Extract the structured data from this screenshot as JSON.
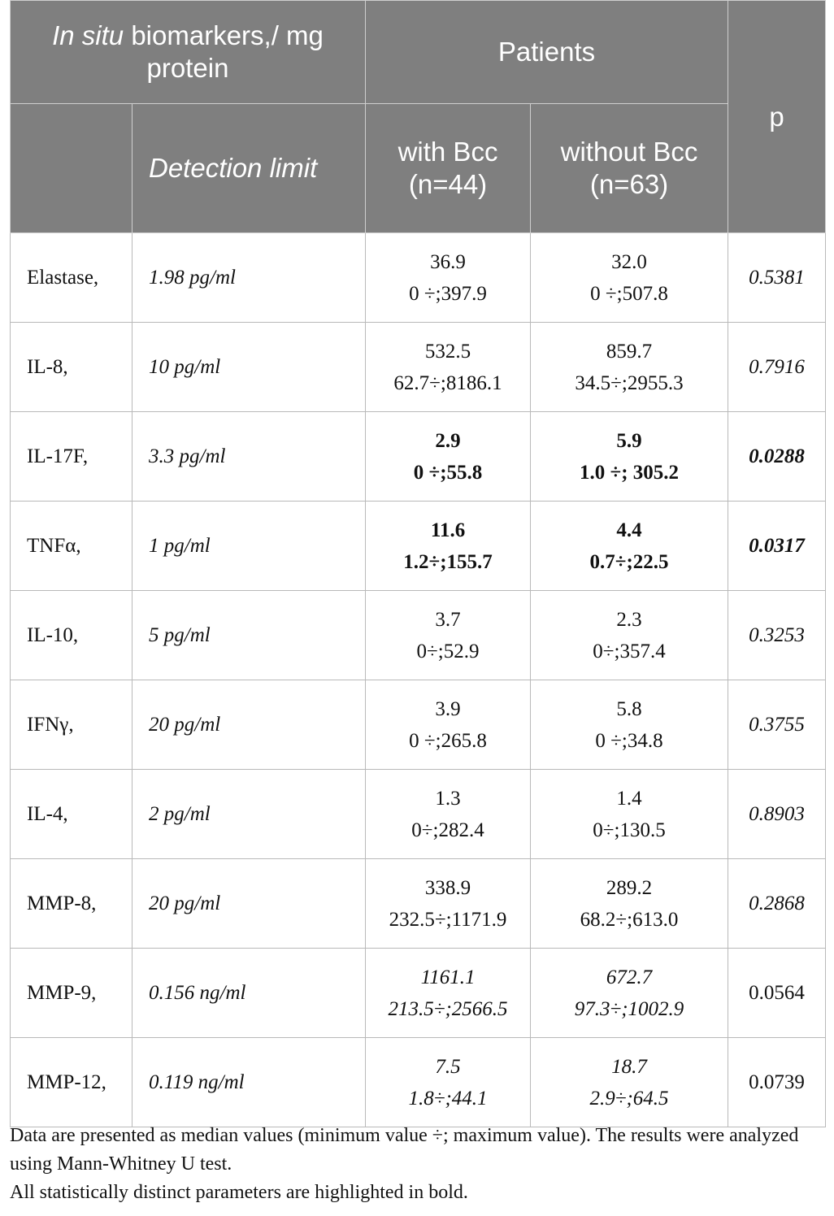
{
  "header": {
    "col1_italic": "In situ",
    "col1_rest": " biomarkers,/ mg protein",
    "patients": "Patients",
    "p": "p",
    "detection_limit": "Detection limit",
    "with_bcc": "with Bcc (n=44)",
    "without_bcc": "without Bcc (n=63)"
  },
  "rows": [
    {
      "name": "Elastase,",
      "limit": "1.98 pg/ml",
      "with_median": "36.9",
      "with_range": "0 ÷;397.9",
      "without_median": "32.0",
      "without_range": "0 ÷;507.8",
      "p": "0.5381"
    },
    {
      "name": "IL-8,",
      "limit": "10 pg/ml",
      "with_median": "532.5",
      "with_range": "62.7÷;8186.1",
      "without_median": "859.7",
      "without_range": "34.5÷;2955.3",
      "p": "0.7916"
    },
    {
      "name": "IL-17F,",
      "limit": "3.3 pg/ml",
      "with_median": "2.9",
      "with_range": "0 ÷;55.8",
      "without_median": "5.9",
      "without_range": "1.0 ÷; 305.2",
      "p": "0.0288"
    },
    {
      "name": "TNFα,",
      "limit": "1 pg/ml",
      "with_median": "11.6",
      "with_range": "1.2÷;155.7",
      "without_median": "4.4",
      "without_range": "0.7÷;22.5",
      "p": "0.0317"
    },
    {
      "name": "IL-10,",
      "limit": "5 pg/ml",
      "with_median": "3.7",
      "with_range": "0÷;52.9",
      "without_median": "2.3",
      "without_range": "0÷;357.4",
      "p": "0.3253"
    },
    {
      "name": "IFNγ,",
      "limit": "20 pg/ml",
      "with_median": "3.9",
      "with_range": "0 ÷;265.8",
      "without_median": "5.8",
      "without_range": "0 ÷;34.8",
      "p": "0.3755"
    },
    {
      "name": "IL-4,",
      "limit": "2 pg/ml",
      "with_median": "1.3",
      "with_range": "0÷;282.4",
      "without_median": "1.4",
      "without_range": "0÷;130.5",
      "p": "0.8903"
    },
    {
      "name": "MMP-8,",
      "limit": "20 pg/ml",
      "with_median": "338.9",
      "with_range": "232.5÷;1171.9",
      "without_median": "289.2",
      "without_range": "68.2÷;613.0",
      "p": "0.2868"
    },
    {
      "name": "MMP-9,",
      "limit": "0.156 ng/ml",
      "with_median": "1161.1",
      "with_range": "213.5÷;2566.5",
      "without_median": "672.7",
      "without_range": "97.3÷;1002.9",
      "p": "0.0564"
    },
    {
      "name": "MMP-12,",
      "limit": "0.119 ng/ml",
      "with_median": "7.5",
      "with_range": "1.8÷;44.1",
      "without_median": "18.7",
      "without_range": "2.9÷;64.5",
      "p": "0.0739"
    }
  ],
  "footnote": {
    "line1": "Data are presented as median values (minimum value ÷; maximum value). The results were analyzed using Mann-Whitney U test.",
    "line2": "All statistically distinct parameters are highlighted in bold."
  }
}
